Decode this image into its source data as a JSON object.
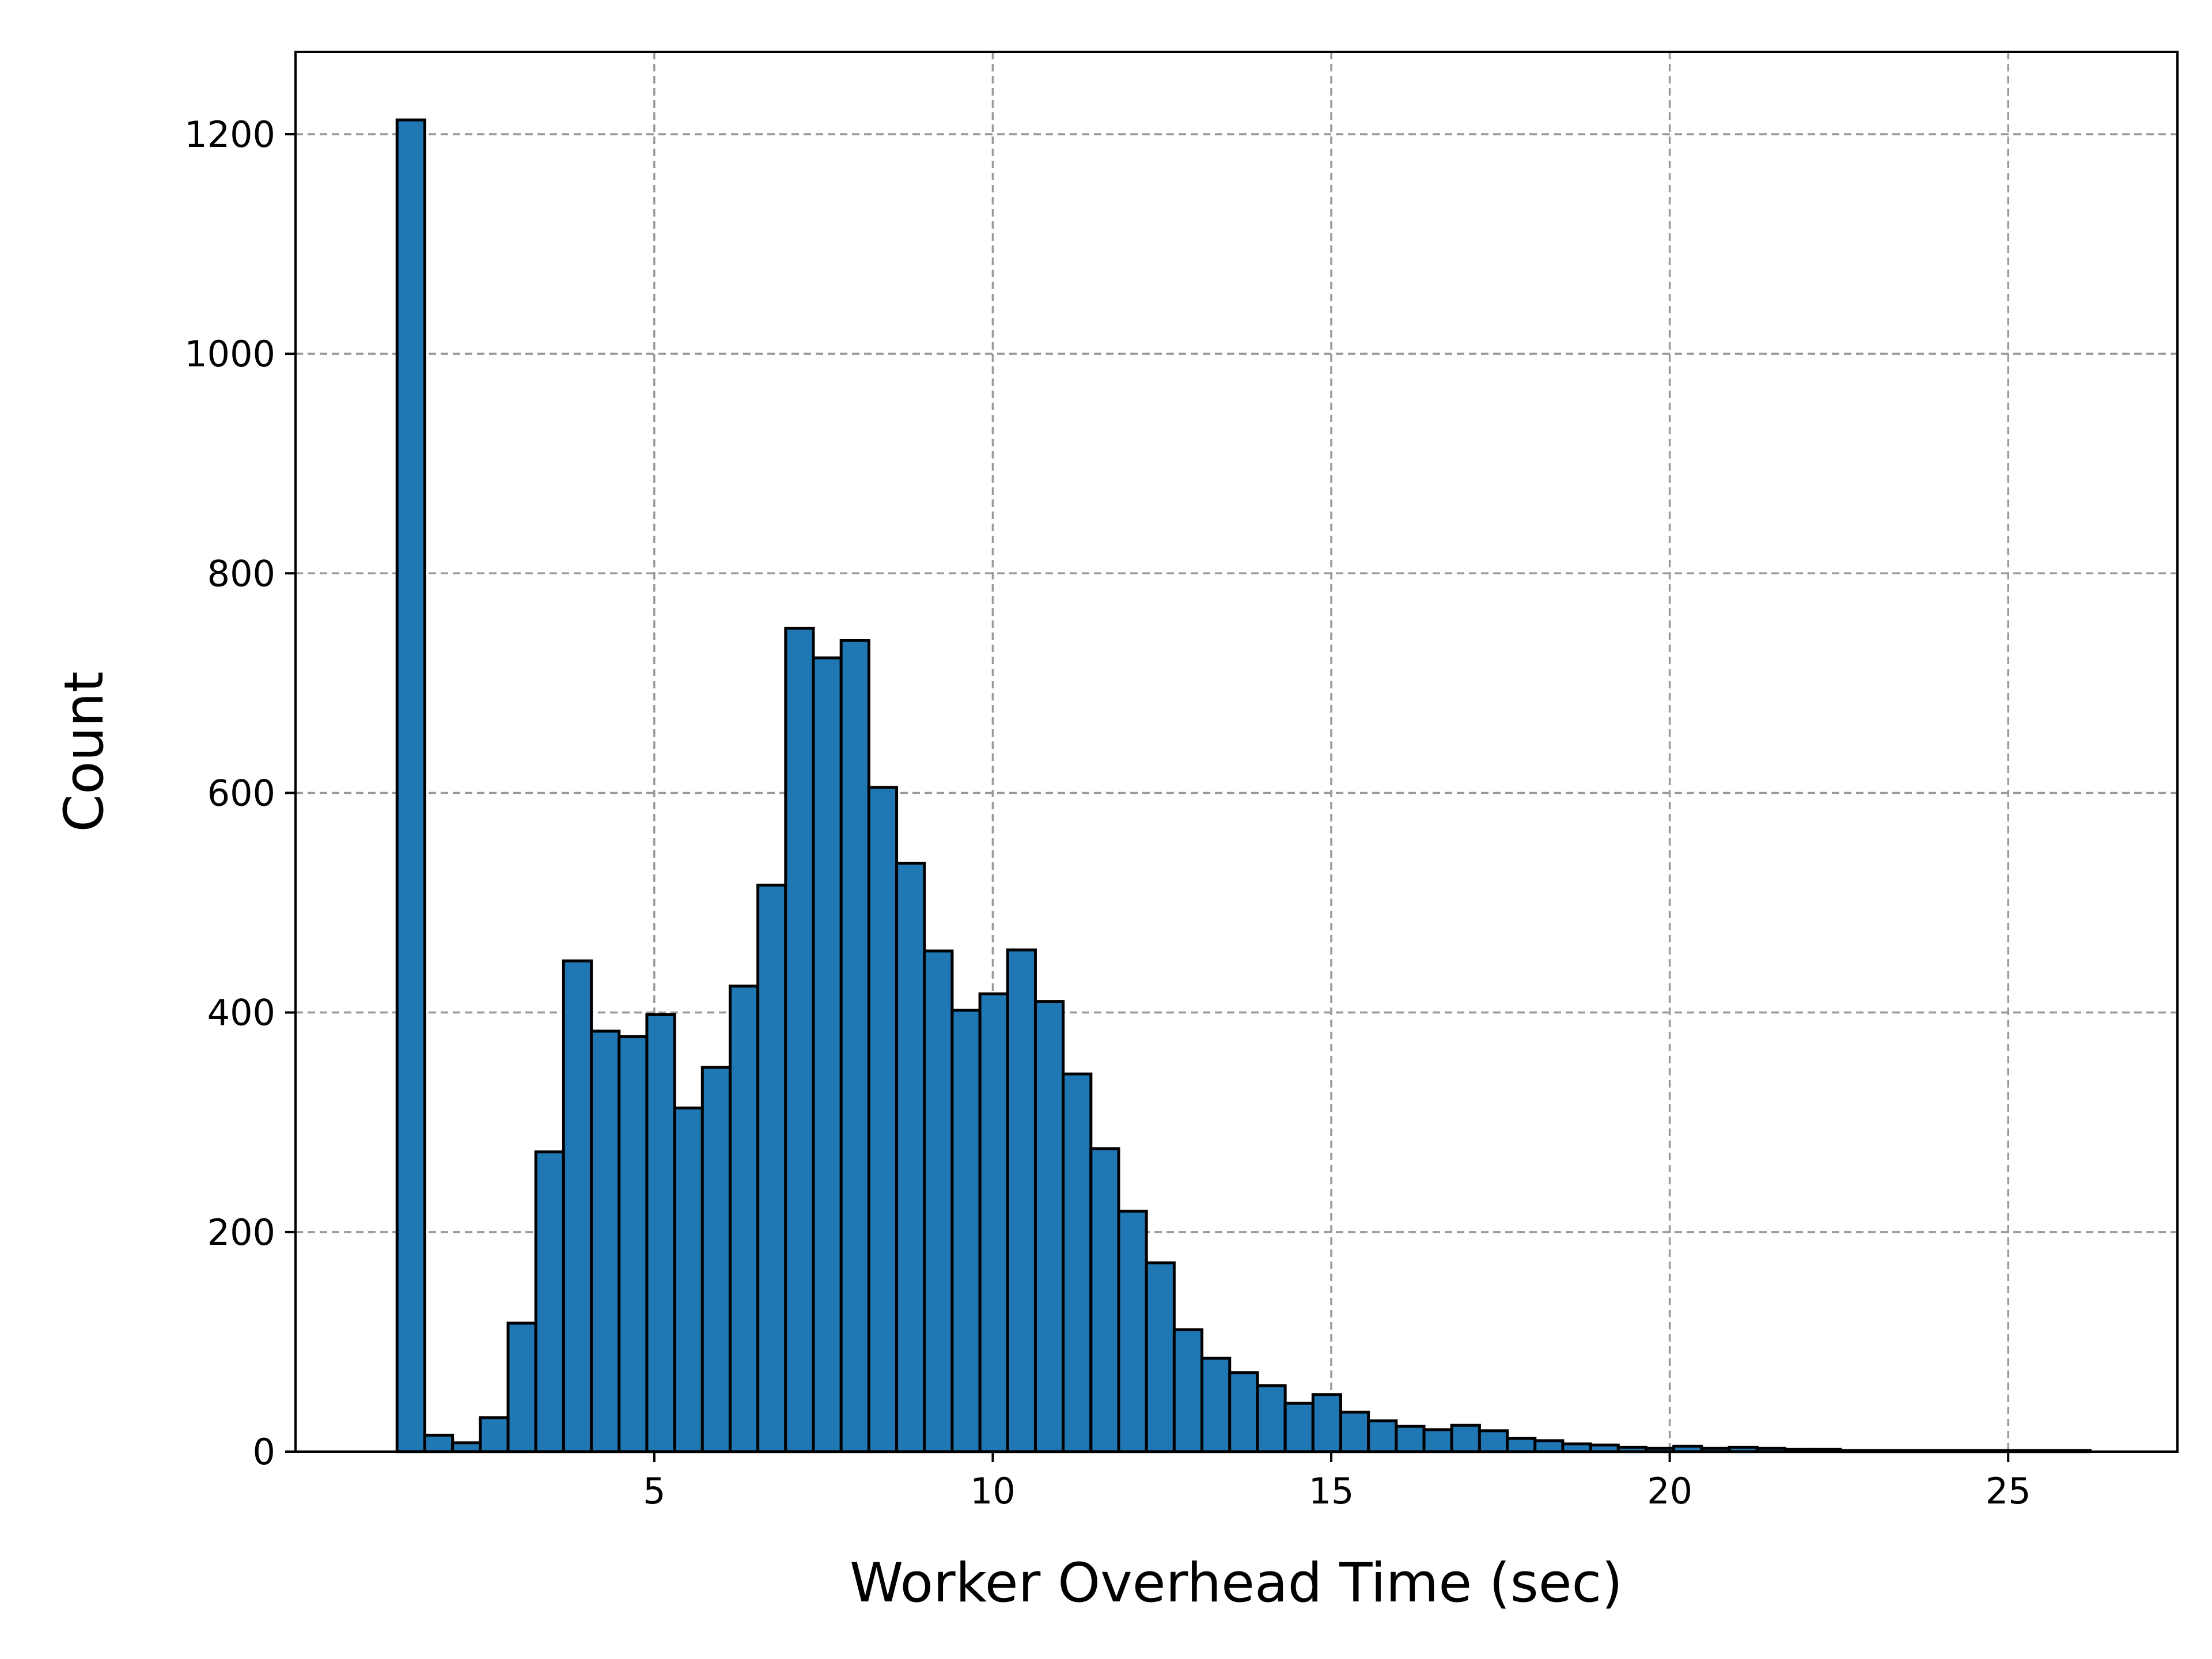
{
  "chart_data": {
    "type": "bar",
    "title": "",
    "xlabel": "Worker Overhead Time (sec)",
    "ylabel": "Count",
    "xlim": [
      -0.3,
      27.5
    ],
    "ylim": [
      0,
      1275
    ],
    "x_ticks": [
      5,
      10,
      15,
      20,
      25
    ],
    "y_ticks": [
      0,
      200,
      400,
      600,
      800,
      1000,
      1200
    ],
    "grid": true,
    "bar_color": "#1f77b4",
    "edge_color": "#000000",
    "bin_width": 0.41,
    "series": [
      {
        "bin_start": [
          1.2,
          1.61,
          2.02,
          2.43,
          2.84,
          3.25,
          3.66,
          4.07,
          4.48,
          4.89,
          5.3,
          5.71,
          6.12,
          6.53,
          6.94,
          7.35,
          7.76,
          8.17,
          8.58,
          8.99,
          9.4,
          9.81,
          10.22,
          10.63,
          11.04,
          11.45,
          11.86,
          12.27,
          12.68,
          13.09,
          13.5,
          13.91,
          14.32,
          14.73,
          15.14,
          15.55,
          15.96,
          16.37,
          16.78,
          17.19,
          17.6,
          18.01,
          18.42,
          18.83,
          19.24,
          19.65,
          20.06,
          20.47,
          20.88,
          21.29,
          21.7,
          22.11,
          22.52,
          22.93,
          23.34,
          23.75,
          24.16,
          24.57,
          24.98,
          25.39,
          25.8
        ],
        "values": [
          1213,
          15,
          8,
          31,
          117,
          273,
          447,
          383,
          378,
          398,
          313,
          350,
          424,
          516,
          750,
          723,
          739,
          605,
          536,
          456,
          402,
          417,
          457,
          410,
          344,
          276,
          219,
          172,
          111,
          85,
          72,
          60,
          44,
          52,
          36,
          28,
          23,
          20,
          24,
          19,
          12,
          10,
          7,
          6,
          4,
          3,
          5,
          3,
          4,
          3,
          2,
          2,
          1,
          1,
          1,
          1,
          1,
          1,
          1,
          1,
          1
        ]
      }
    ]
  }
}
